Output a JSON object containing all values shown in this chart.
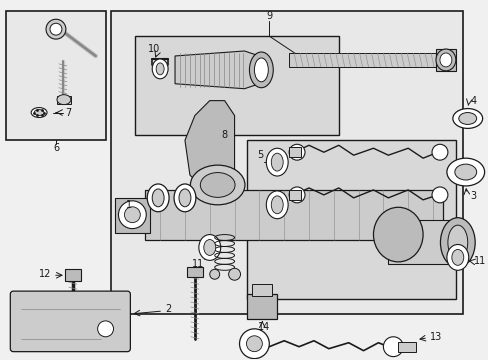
{
  "bg": "#f0f0f0",
  "panel_bg": "#e8e8e8",
  "inner_bg": "#d8d8d8",
  "white": "#ffffff",
  "dk": "#1a1a1a",
  "gray1": "#aaaaaa",
  "gray2": "#bbbbbb",
  "gray3": "#cccccc",
  "gray4": "#888888",
  "figsize": [
    4.89,
    3.6
  ],
  "dpi": 100
}
